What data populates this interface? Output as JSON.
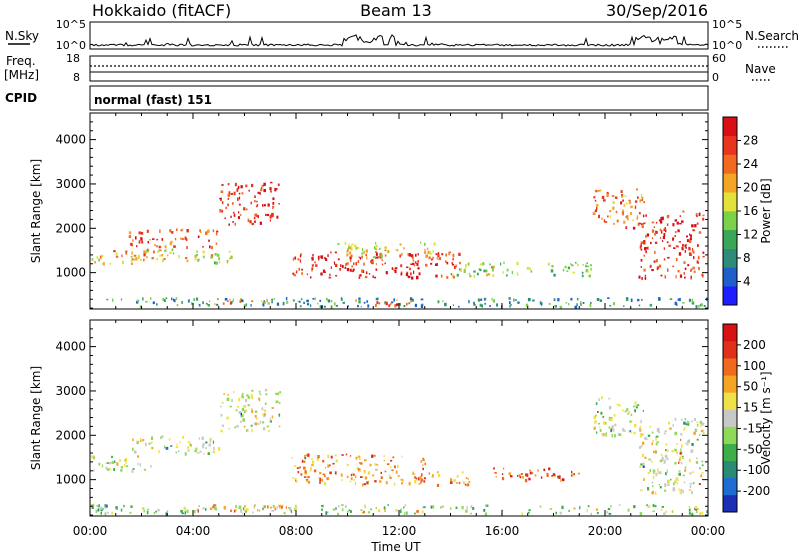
{
  "header": {
    "left": "Hokkaido (fitACF)",
    "center": "Beam 13",
    "right": "30/Sep/2016"
  },
  "top_panels": {
    "nsky_label": "N.Sky",
    "nsearch_label": "N.Search",
    "count_ticks": [
      "10^5",
      "10^0"
    ],
    "freq_label_line1": "Freq.",
    "freq_label_line2": "[MHz]",
    "freq_ticks": [
      "18",
      "8"
    ],
    "nave_label": "Nave",
    "nave_ticks": [
      "60",
      "0"
    ],
    "cpid_label": "CPID",
    "cpid_value": "normal (fast) 151"
  },
  "chart_data": [
    {
      "type": "heatmap",
      "panel": "power",
      "ylabel": "Slant Range [km]",
      "xlabel": "",
      "ylim": [
        180,
        4600
      ],
      "yticks": [
        1000,
        2000,
        3000,
        4000
      ],
      "xticks": [
        "00:00",
        "04:00",
        "08:00",
        "12:00",
        "16:00",
        "20:00",
        "00:00"
      ],
      "xlim_hours": [
        0,
        24
      ],
      "colorbar": {
        "label": "Power [dB]",
        "ticks": [
          "4",
          "8",
          "12",
          "16",
          "20",
          "24",
          "28"
        ],
        "colors": [
          "#1e1eff",
          "#1e5fcc",
          "#2d8c78",
          "#3aa65a",
          "#7bd14a",
          "#e3e23a",
          "#f4a426",
          "#f26a21",
          "#e8351e",
          "#d90f16"
        ]
      },
      "scatter_regions": [
        {
          "t": [
            0.0,
            2.5
          ],
          "r": [
            1200,
            1550
          ],
          "level": 0.65
        },
        {
          "t": [
            1.5,
            5.0
          ],
          "r": [
            1600,
            2000
          ],
          "level": 0.8
        },
        {
          "t": [
            5.0,
            7.4
          ],
          "r": [
            2100,
            3050
          ],
          "level": 0.9
        },
        {
          "t": [
            2.0,
            5.5
          ],
          "r": [
            1250,
            1550
          ],
          "level": 0.55
        },
        {
          "t": [
            7.8,
            14.5
          ],
          "r": [
            900,
            1500
          ],
          "level": 0.9
        },
        {
          "t": [
            9.5,
            13.5
          ],
          "r": [
            1350,
            1700
          ],
          "level": 0.6
        },
        {
          "t": [
            14.0,
            19.5
          ],
          "r": [
            950,
            1250
          ],
          "level": 0.45
        },
        {
          "t": [
            19.5,
            21.5
          ],
          "r": [
            2000,
            2900
          ],
          "level": 0.75
        },
        {
          "t": [
            21.3,
            23.8
          ],
          "r": [
            900,
            2400
          ],
          "level": 0.88
        },
        {
          "t": [
            0.0,
            24.0
          ],
          "r": [
            250,
            450
          ],
          "level": 0.3
        },
        {
          "t": [
            10.0,
            12.5
          ],
          "r": [
            280,
            420
          ],
          "level": 0.75
        },
        {
          "t": [
            4.5,
            7.0
          ],
          "r": [
            300,
            420
          ],
          "level": 0.65
        }
      ]
    },
    {
      "type": "heatmap",
      "panel": "velocity",
      "ylabel": "Slant Range [km]",
      "xlabel": "Time UT",
      "ylim": [
        180,
        4600
      ],
      "yticks": [
        1000,
        2000,
        3000,
        4000
      ],
      "xticks": [
        "00:00",
        "04:00",
        "08:00",
        "12:00",
        "16:00",
        "20:00",
        "00:00"
      ],
      "xlim_hours": [
        0,
        24
      ],
      "colorbar": {
        "label": "Velocity [m s⁻¹]",
        "ticks": [
          "200",
          "100",
          "50",
          "15",
          "-15",
          "-50",
          "-100",
          "-200"
        ],
        "colors": [
          "#1b2fb5",
          "#1f6bd1",
          "#2a8a74",
          "#3dae49",
          "#8ed957",
          "#c8c8c8",
          "#f0e14a",
          "#f5a526",
          "#ef6a1d",
          "#e0301c",
          "#d61212"
        ]
      },
      "scatter_regions": [
        {
          "t": [
            0.0,
            2.5
          ],
          "r": [
            1200,
            1550
          ],
          "level": 0.5
        },
        {
          "t": [
            1.5,
            5.0
          ],
          "r": [
            1600,
            2000
          ],
          "level": 0.5
        },
        {
          "t": [
            5.0,
            7.4
          ],
          "r": [
            2100,
            3050
          ],
          "level": 0.5
        },
        {
          "t": [
            7.8,
            13.0
          ],
          "r": [
            900,
            1600
          ],
          "level": 0.72
        },
        {
          "t": [
            12.5,
            14.8
          ],
          "r": [
            900,
            1200
          ],
          "level": 0.75
        },
        {
          "t": [
            15.5,
            19.0
          ],
          "r": [
            1000,
            1300
          ],
          "level": 0.8
        },
        {
          "t": [
            19.5,
            21.5
          ],
          "r": [
            2000,
            2900
          ],
          "level": 0.5
        },
        {
          "t": [
            21.3,
            23.8
          ],
          "r": [
            700,
            2400
          ],
          "level": 0.5
        },
        {
          "t": [
            0.0,
            24.0
          ],
          "r": [
            250,
            450
          ],
          "level": 0.4
        },
        {
          "t": [
            4.0,
            8.0
          ],
          "r": [
            300,
            450
          ],
          "level": 0.72
        }
      ]
    }
  ]
}
